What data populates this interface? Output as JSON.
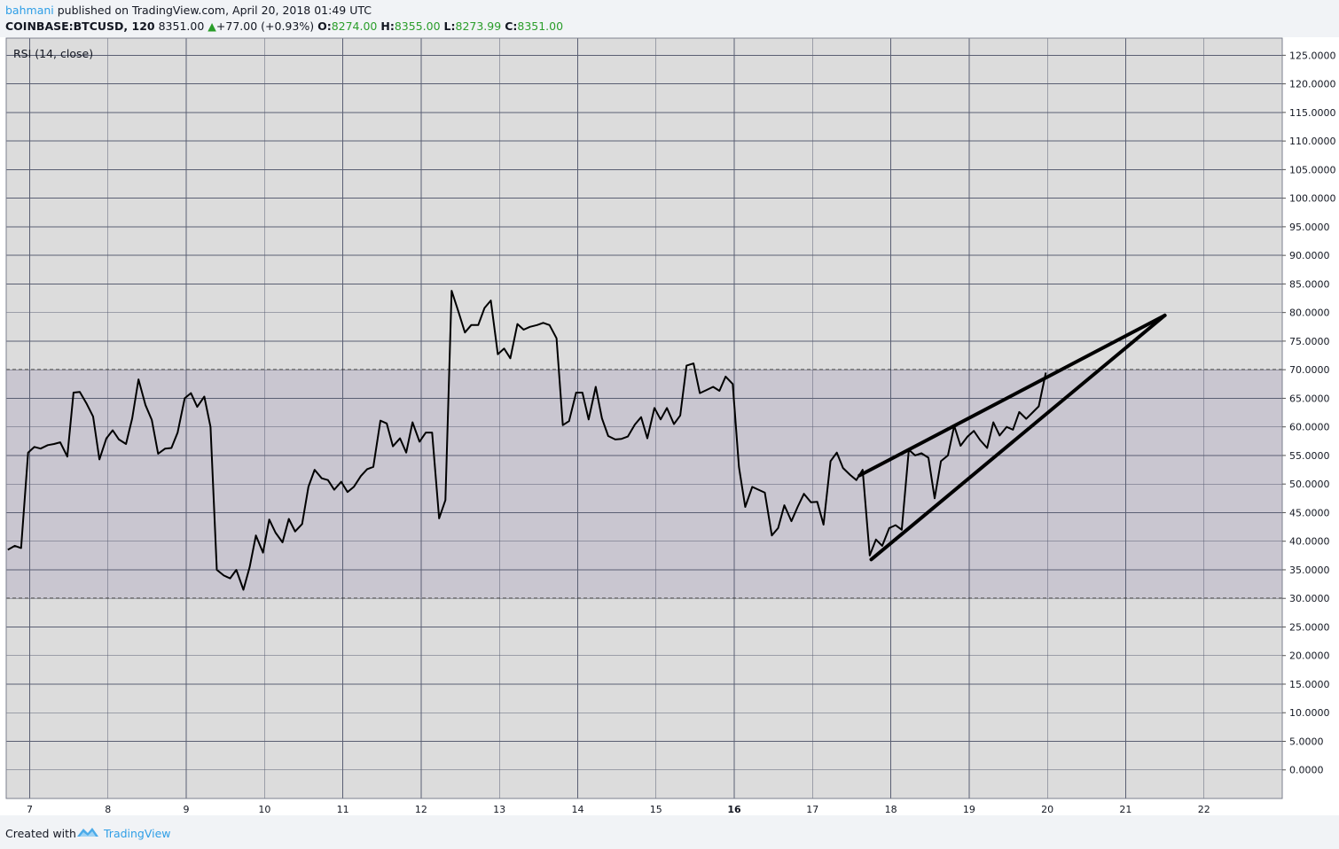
{
  "header": {
    "author": "bahmani",
    "published_text": "published on TradingView.com, April 20, 2018 01:49 UTC",
    "symbol": "COINBASE:BTCUSD, 120",
    "last_price": "8351.00",
    "change_arrow": "▲",
    "change": "+77.00 (+0.93%)",
    "open_label": "O:",
    "open_value": "8274.00",
    "high_label": "H:",
    "high_value": "8355.00",
    "low_label": "L:",
    "low_value": "8273.99",
    "close_label": "C:",
    "close_value": "8351.00"
  },
  "footer": {
    "created_with": "Created with",
    "brand": "TradingView"
  },
  "colors": {
    "chart_bg": "#dcdcdc",
    "band_fill": "#c9c6d0",
    "grid": "#5a5f73",
    "rsi_line": "#000000",
    "price_up": "#2a9d2a",
    "brand_blue": "#2e9ee6"
  },
  "chart_data": {
    "type": "line",
    "indicator_label": "RSI (14, close)",
    "ylim": [
      -5,
      128
    ],
    "y_ticks": [
      "125.0000",
      "120.0000",
      "115.0000",
      "110.0000",
      "105.0000",
      "100.0000",
      "95.0000",
      "90.0000",
      "85.0000",
      "80.0000",
      "75.0000",
      "70.0000",
      "65.0000",
      "60.0000",
      "55.0000",
      "50.0000",
      "45.0000",
      "40.0000",
      "35.0000",
      "30.0000",
      "25.0000",
      "20.0000",
      "15.0000",
      "10.0000",
      "5.0000",
      "0.0000"
    ],
    "y_tick_values": [
      125,
      120,
      115,
      110,
      105,
      100,
      95,
      90,
      85,
      80,
      75,
      70,
      65,
      60,
      55,
      50,
      45,
      40,
      35,
      30,
      25,
      20,
      15,
      10,
      5,
      0
    ],
    "x_range": [
      6.7,
      23.0
    ],
    "x_ticks": [
      {
        "label": "7",
        "value": 7,
        "bold": false
      },
      {
        "label": "8",
        "value": 8,
        "bold": false
      },
      {
        "label": "9",
        "value": 9,
        "bold": false
      },
      {
        "label": "10",
        "value": 10,
        "bold": false
      },
      {
        "label": "11",
        "value": 11,
        "bold": false
      },
      {
        "label": "12",
        "value": 12,
        "bold": false
      },
      {
        "label": "13",
        "value": 13,
        "bold": false
      },
      {
        "label": "14",
        "value": 14,
        "bold": false
      },
      {
        "label": "15",
        "value": 15,
        "bold": false
      },
      {
        "label": "16",
        "value": 16,
        "bold": true
      },
      {
        "label": "17",
        "value": 17,
        "bold": false
      },
      {
        "label": "18",
        "value": 18,
        "bold": false
      },
      {
        "label": "19",
        "value": 19,
        "bold": false
      },
      {
        "label": "20",
        "value": 20,
        "bold": false
      },
      {
        "label": "21",
        "value": 21,
        "bold": false
      },
      {
        "label": "22",
        "value": 22,
        "bold": false
      }
    ],
    "band": {
      "upper": 70,
      "lower": 30
    },
    "grid": true,
    "series": [
      {
        "x": [
          6.72,
          6.81,
          6.89,
          6.98,
          7.06,
          7.14,
          7.23,
          7.31,
          7.39,
          7.48,
          7.56,
          7.64,
          7.73,
          7.81,
          7.89,
          7.98,
          8.06,
          8.14,
          8.23,
          8.31,
          8.39,
          8.48,
          8.56,
          8.64,
          8.73,
          8.81,
          8.89,
          8.98,
          9.06,
          9.14,
          9.23,
          9.31,
          9.39,
          9.48,
          9.56,
          9.64,
          9.73,
          9.81,
          9.89,
          9.98,
          10.06,
          10.14,
          10.23,
          10.31,
          10.39,
          10.48,
          10.56,
          10.64,
          10.73,
          10.81,
          10.89,
          10.98,
          11.06,
          11.14,
          11.23,
          11.31,
          11.39,
          11.48,
          11.56,
          11.64,
          11.73,
          11.81,
          11.89,
          11.98,
          12.06,
          12.14,
          12.23,
          12.31,
          12.39,
          12.48,
          12.56,
          12.64,
          12.73,
          12.81,
          12.89,
          12.98,
          13.06,
          13.14,
          13.23,
          13.31,
          13.39,
          13.48,
          13.56,
          13.64,
          13.73,
          13.81,
          13.89,
          13.98,
          14.06,
          14.14,
          14.23,
          14.31,
          14.39,
          14.48,
          14.56,
          14.64,
          14.73,
          14.81,
          14.89,
          14.98,
          15.06,
          15.14,
          15.23,
          15.31,
          15.39,
          15.48,
          15.56,
          15.64,
          15.73,
          15.81,
          15.89,
          15.98,
          16.06,
          16.14,
          16.23,
          16.31,
          16.39,
          16.48,
          16.56,
          16.64,
          16.73,
          16.81,
          16.89,
          16.98,
          17.06,
          17.14,
          17.23,
          17.31,
          17.39,
          17.48,
          17.56,
          17.64,
          17.73,
          17.81,
          17.89,
          17.98,
          18.06,
          18.14,
          18.23,
          18.31,
          18.39,
          18.48,
          18.56,
          18.64,
          18.73,
          18.81,
          18.89,
          18.98,
          19.06,
          19.14,
          19.23,
          19.31,
          19.39,
          19.48,
          19.56,
          19.64,
          19.73,
          19.81,
          19.89,
          19.98
        ],
        "y": [
          38.5,
          39.2,
          38.8,
          55.5,
          56.5,
          56.2,
          56.8,
          57.0,
          57.3,
          54.8,
          66.0,
          66.1,
          64.0,
          61.8,
          54.3,
          58.0,
          59.4,
          57.8,
          57.0,
          61.5,
          68.3,
          63.8,
          61.2,
          55.3,
          56.2,
          56.3,
          59.0,
          65.0,
          65.9,
          63.5,
          65.3,
          60.0,
          35.0,
          34.0,
          33.5,
          35.0,
          31.5,
          35.5,
          41.0,
          38.0,
          43.8,
          41.5,
          39.8,
          43.9,
          41.7,
          43.0,
          49.5,
          52.5,
          51.0,
          50.7,
          49.0,
          50.4,
          48.6,
          49.5,
          51.4,
          52.6,
          53.0,
          61.1,
          60.6,
          56.6,
          58.0,
          55.5,
          60.8,
          57.4,
          59.0,
          59.0,
          44.0,
          47.2,
          83.8,
          80.0,
          76.5,
          77.8,
          77.8,
          80.8,
          82.1,
          72.7,
          73.7,
          72.0,
          78.0,
          77.0,
          77.5,
          77.8,
          78.2,
          77.8,
          75.5,
          60.3,
          61.0,
          66.0,
          66.0,
          61.3,
          67.0,
          61.5,
          58.4,
          57.8,
          57.9,
          58.3,
          60.4,
          61.7,
          58.0,
          63.3,
          61.3,
          63.3,
          60.5,
          62.0,
          70.7,
          71.1,
          65.9,
          66.4,
          67.0,
          66.3,
          68.8,
          67.5,
          53.0,
          46.0,
          49.5,
          49.0,
          48.5,
          41.0,
          42.3,
          46.3,
          43.5,
          46.0,
          48.3,
          46.8,
          46.9,
          42.9,
          54.0,
          55.5,
          52.8,
          51.6,
          50.7,
          52.5,
          37.5,
          40.3,
          39.2,
          42.3,
          42.8,
          42.0,
          56.0,
          55.0,
          55.4,
          54.6,
          47.5,
          54.0,
          55.0,
          60.2,
          56.7,
          58.3,
          59.3,
          57.7,
          56.3,
          60.8,
          58.5,
          60.0,
          59.5,
          62.6,
          61.4,
          62.5,
          63.6,
          69.5
        ]
      }
    ],
    "drawings": [
      {
        "name": "upper-trendline",
        "x1": 17.6,
        "y1": 51.5,
        "x2": 21.5,
        "y2": 79.5
      },
      {
        "name": "lower-trendline",
        "x1": 17.75,
        "y1": 36.8,
        "x2": 21.5,
        "y2": 79.5
      }
    ]
  }
}
